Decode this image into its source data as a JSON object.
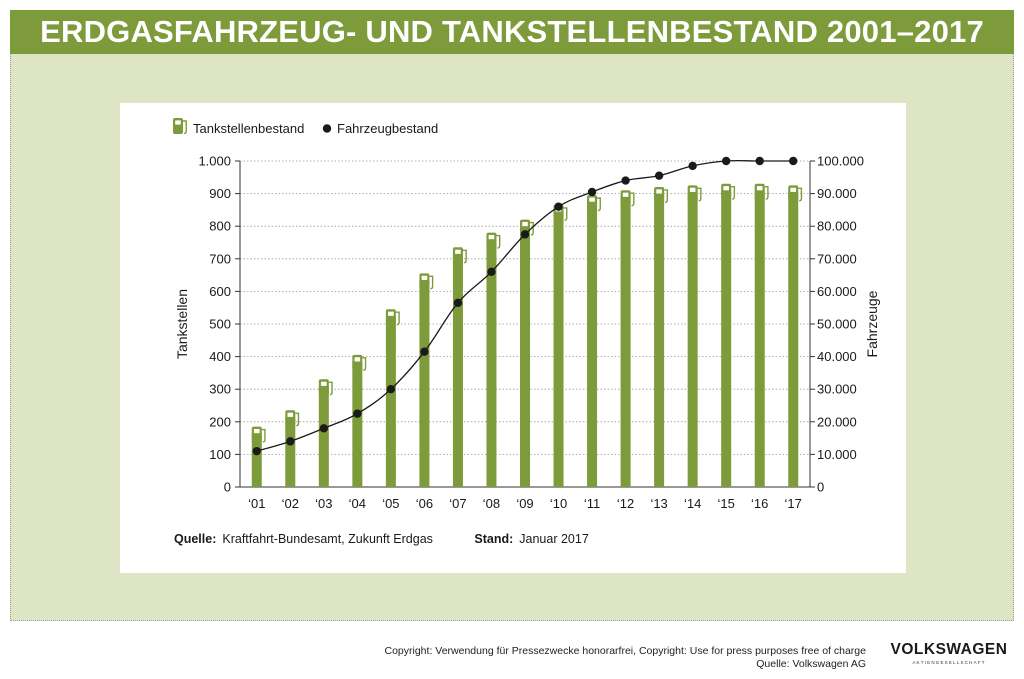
{
  "header": {
    "title": "ERDGASFAHRZEUG- UND TANKSTELLENBESTAND 2001–2017"
  },
  "colors": {
    "banner": "#7d9b3a",
    "panel": "#dde5c5",
    "bar": "#7d9b3a",
    "line": "#1a1a1a"
  },
  "chart_data": {
    "type": "bar+line",
    "legend": [
      {
        "label": "Tankstellenbestand",
        "icon": "fuel-pump-icon"
      },
      {
        "label": "Fahrzeugbestand",
        "icon": "dot-marker"
      }
    ],
    "categories": [
      "‘01",
      "‘02",
      "‘03",
      "‘04",
      "‘05",
      "‘06",
      "‘07",
      "‘08",
      "‘09",
      "‘10",
      "‘11",
      "‘12",
      "‘13",
      "‘14",
      "‘15",
      "‘16",
      "‘17"
    ],
    "y_left": {
      "label": "Tankstellen",
      "range": [
        0,
        1000
      ],
      "ticks": [
        0,
        100,
        200,
        300,
        400,
        500,
        600,
        700,
        800,
        900,
        1000
      ],
      "tick_labels": [
        "0",
        "100",
        "200",
        "300",
        "400",
        "500",
        "600",
        "700",
        "800",
        "900",
        "1.000"
      ]
    },
    "y_right": {
      "label": "Fahrzeuge",
      "range": [
        0,
        100000
      ],
      "ticks": [
        0,
        10000,
        20000,
        30000,
        40000,
        50000,
        60000,
        70000,
        80000,
        90000,
        100000
      ],
      "tick_labels": [
        "0",
        "10.000",
        "20.000",
        "30.000",
        "40.000",
        "50.000",
        "60.000",
        "70.000",
        "80.000",
        "90.000",
        "100.000"
      ]
    },
    "series": [
      {
        "name": "Tankstellenbestand",
        "type": "bar",
        "axis": "left",
        "values": [
          170,
          220,
          315,
          390,
          530,
          640,
          720,
          765,
          805,
          850,
          880,
          895,
          905,
          910,
          915,
          915,
          910
        ]
      },
      {
        "name": "Fahrzeugbestand",
        "type": "line",
        "axis": "right",
        "values": [
          11000,
          14000,
          18000,
          22500,
          30000,
          41500,
          56500,
          66000,
          77500,
          86000,
          90500,
          94000,
          95500,
          98500,
          100000,
          100000,
          100000
        ]
      }
    ],
    "grid": true
  },
  "source": {
    "quelle_label": "Quelle:",
    "quelle_value": "Kraftfahrt-Bundesamt, Zukunft Erdgas",
    "stand_label": "Stand:",
    "stand_value": "Januar 2017"
  },
  "footer": {
    "copyright": "Copyright: Verwendung für Pressezwecke honorarfrei, Copyright: Use for press purposes free of charge",
    "source": "Quelle: Volkswagen AG"
  },
  "logo": {
    "name": "VOLKSWAGEN",
    "subtitle": "AKTIENGESELLSCHAFT"
  }
}
